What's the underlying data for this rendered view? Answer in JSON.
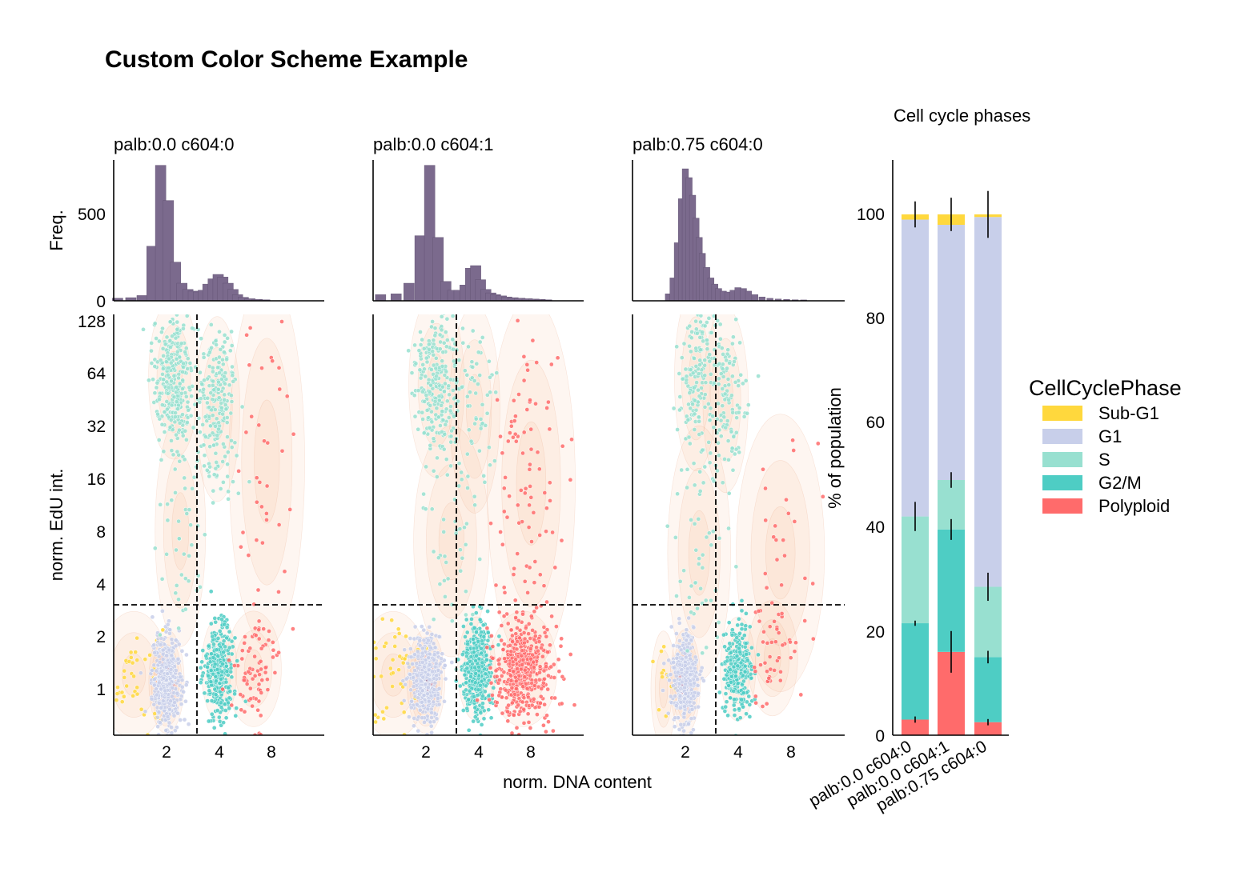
{
  "figure": {
    "title": "Custom Color Scheme Example",
    "shared_xlabel": "norm. DNA content",
    "scatter_ylabel": "norm. EdU int.",
    "hist_ylabel": "Freq."
  },
  "colors": {
    "Sub-G1": "#FFD83D",
    "G1": "#C8CFEA",
    "S": "#98E0D0",
    "G2/M": "#4ECDC4",
    "Polyploid": "#FF6B6B",
    "hist_fill": "#7B6A8D",
    "kde": "#F3B88C"
  },
  "chart_data": [
    {
      "type": "histogram",
      "panel": "palb:0.0 c604:0",
      "title": "palb:0.0 c604:0",
      "ylabel": "Freq.",
      "yticks": [
        "0",
        "500"
      ],
      "ylim": [
        0,
        800
      ],
      "bins": [
        {
          "x": 1.05,
          "count": 15
        },
        {
          "x": 1.25,
          "count": 18
        },
        {
          "x": 1.45,
          "count": 30
        },
        {
          "x": 1.65,
          "count": 310
        },
        {
          "x": 1.85,
          "count": 770
        },
        {
          "x": 2.05,
          "count": 570
        },
        {
          "x": 2.25,
          "count": 220
        },
        {
          "x": 2.45,
          "count": 100
        },
        {
          "x": 2.65,
          "count": 65
        },
        {
          "x": 2.85,
          "count": 55
        },
        {
          "x": 3.05,
          "count": 50
        },
        {
          "x": 3.25,
          "count": 60
        },
        {
          "x": 3.45,
          "count": 95
        },
        {
          "x": 3.7,
          "count": 125
        },
        {
          "x": 3.95,
          "count": 150
        },
        {
          "x": 4.2,
          "count": 135
        },
        {
          "x": 4.5,
          "count": 100
        },
        {
          "x": 4.8,
          "count": 65
        },
        {
          "x": 5.1,
          "count": 35
        },
        {
          "x": 5.5,
          "count": 20
        },
        {
          "x": 6.0,
          "count": 12
        },
        {
          "x": 6.6,
          "count": 8
        },
        {
          "x": 7.3,
          "count": 6
        }
      ]
    },
    {
      "type": "histogram",
      "panel": "palb:0.0 c604:1",
      "title": "palb:0.0 c604:1",
      "yticks": [],
      "ylim": [
        0,
        800
      ],
      "bins": [
        {
          "x": 1.1,
          "count": 35
        },
        {
          "x": 1.35,
          "count": 40
        },
        {
          "x": 1.6,
          "count": 100
        },
        {
          "x": 1.85,
          "count": 370
        },
        {
          "x": 2.1,
          "count": 770
        },
        {
          "x": 2.35,
          "count": 360
        },
        {
          "x": 2.6,
          "count": 110
        },
        {
          "x": 2.85,
          "count": 60
        },
        {
          "x": 3.1,
          "count": 60
        },
        {
          "x": 3.35,
          "count": 90
        },
        {
          "x": 3.6,
          "count": 185
        },
        {
          "x": 3.85,
          "count": 200
        },
        {
          "x": 4.1,
          "count": 120
        },
        {
          "x": 4.4,
          "count": 65
        },
        {
          "x": 4.7,
          "count": 45
        },
        {
          "x": 5.0,
          "count": 35
        },
        {
          "x": 5.4,
          "count": 28
        },
        {
          "x": 5.8,
          "count": 22
        },
        {
          "x": 6.3,
          "count": 18
        },
        {
          "x": 6.9,
          "count": 15
        },
        {
          "x": 7.6,
          "count": 12
        },
        {
          "x": 8.3,
          "count": 10
        },
        {
          "x": 9.0,
          "count": 8
        },
        {
          "x": 9.8,
          "count": 6
        }
      ]
    },
    {
      "type": "histogram",
      "panel": "palb:0.75 c604:0",
      "title": "palb:0.75 c604:0",
      "yticks": [],
      "ylim": [
        0,
        800
      ],
      "bins": [
        {
          "x": 1.6,
          "count": 40
        },
        {
          "x": 1.7,
          "count": 130
        },
        {
          "x": 1.8,
          "count": 330
        },
        {
          "x": 1.9,
          "count": 580
        },
        {
          "x": 2.0,
          "count": 750
        },
        {
          "x": 2.1,
          "count": 700
        },
        {
          "x": 2.2,
          "count": 600
        },
        {
          "x": 2.3,
          "count": 470
        },
        {
          "x": 2.4,
          "count": 360
        },
        {
          "x": 2.5,
          "count": 270
        },
        {
          "x": 2.65,
          "count": 190
        },
        {
          "x": 2.8,
          "count": 130
        },
        {
          "x": 2.95,
          "count": 95
        },
        {
          "x": 3.1,
          "count": 70
        },
        {
          "x": 3.3,
          "count": 55
        },
        {
          "x": 3.5,
          "count": 50
        },
        {
          "x": 3.75,
          "count": 60
        },
        {
          "x": 4.0,
          "count": 75
        },
        {
          "x": 4.3,
          "count": 70
        },
        {
          "x": 4.6,
          "count": 55
        },
        {
          "x": 5.0,
          "count": 35
        },
        {
          "x": 5.5,
          "count": 22
        },
        {
          "x": 6.1,
          "count": 14
        },
        {
          "x": 6.8,
          "count": 10
        },
        {
          "x": 7.6,
          "count": 8
        },
        {
          "x": 8.5,
          "count": 6
        },
        {
          "x": 9.5,
          "count": 5
        }
      ]
    },
    {
      "type": "scatter",
      "panel": "palb:0.0 c604:0",
      "xlabel": "",
      "ylabel": "norm. EdU int.",
      "xscale": "log2",
      "yscale": "log2",
      "xlim": [
        1,
        11
      ],
      "ylim": [
        0.5,
        128
      ],
      "xticks": [
        "2",
        "4",
        "8"
      ],
      "yticks": [
        "1",
        "2",
        "4",
        "8",
        "16",
        "32",
        "64",
        "128"
      ],
      "dna_threshold": 3.0,
      "edu_threshold": 3.0,
      "clusters": [
        {
          "phase": "Sub-G1",
          "n": 45,
          "x_center": 1.3,
          "x_spread": 0.28,
          "y_center": 1.2,
          "y_spread": 0.55
        },
        {
          "phase": "G1",
          "n": 420,
          "x_center": 2.0,
          "x_spread": 0.14,
          "y_center": 1.1,
          "y_spread": 0.45
        },
        {
          "phase": "S",
          "n": 300,
          "x_center": 2.2,
          "x_spread": 0.2,
          "y_center": 60,
          "y_spread": 0.7
        },
        {
          "phase": "S",
          "n": 220,
          "x_center": 3.9,
          "x_spread": 0.18,
          "y_center": 40,
          "y_spread": 0.8
        },
        {
          "phase": "S",
          "n": 45,
          "x_center": 2.4,
          "x_spread": 0.2,
          "y_center": 8,
          "y_spread": 1.0
        },
        {
          "phase": "G2/M",
          "n": 330,
          "x_center": 4.0,
          "x_spread": 0.14,
          "y_center": 1.3,
          "y_spread": 0.45
        },
        {
          "phase": "Polyploid",
          "n": 75,
          "x_center": 6.3,
          "x_spread": 0.22,
          "y_center": 1.3,
          "y_spread": 0.5
        },
        {
          "phase": "Polyploid",
          "n": 40,
          "x_center": 7.5,
          "x_spread": 0.3,
          "y_center": 20,
          "y_spread": 1.6
        }
      ]
    },
    {
      "type": "scatter",
      "panel": "palb:0.0 c604:1",
      "xlabel": "norm. DNA content",
      "xscale": "log2",
      "yscale": "log2",
      "xlim": [
        1,
        11
      ],
      "ylim": [
        0.5,
        128
      ],
      "xticks": [
        "2",
        "4",
        "8"
      ],
      "yticks": [],
      "dna_threshold": 3.0,
      "edu_threshold": 3.0,
      "clusters": [
        {
          "phase": "Sub-G1",
          "n": 45,
          "x_center": 1.3,
          "x_spread": 0.28,
          "y_center": 1.2,
          "y_spread": 0.55
        },
        {
          "phase": "G1",
          "n": 420,
          "x_center": 2.0,
          "x_spread": 0.15,
          "y_center": 1.1,
          "y_spread": 0.45
        },
        {
          "phase": "S",
          "n": 260,
          "x_center": 2.3,
          "x_spread": 0.22,
          "y_center": 55,
          "y_spread": 0.8
        },
        {
          "phase": "S",
          "n": 60,
          "x_center": 3.8,
          "x_spread": 0.2,
          "y_center": 40,
          "y_spread": 0.9
        },
        {
          "phase": "S",
          "n": 40,
          "x_center": 2.8,
          "x_spread": 0.3,
          "y_center": 7,
          "y_spread": 1.0
        },
        {
          "phase": "G2/M",
          "n": 420,
          "x_center": 3.9,
          "x_spread": 0.15,
          "y_center": 1.3,
          "y_spread": 0.45
        },
        {
          "phase": "Polyploid",
          "n": 470,
          "x_center": 7.2,
          "x_spread": 0.27,
          "y_center": 1.3,
          "y_spread": 0.5
        },
        {
          "phase": "Polyploid",
          "n": 95,
          "x_center": 8.0,
          "x_spread": 0.35,
          "y_center": 15,
          "y_spread": 1.6
        }
      ]
    },
    {
      "type": "scatter",
      "panel": "palb:0.75 c604:0",
      "xscale": "log2",
      "yscale": "log2",
      "xlim": [
        1,
        11
      ],
      "ylim": [
        0.5,
        128
      ],
      "xticks": [
        "2",
        "4",
        "8"
      ],
      "yticks": [],
      "dna_threshold": 3.0,
      "edu_threshold": 3.0,
      "clusters": [
        {
          "phase": "Sub-G1",
          "n": 12,
          "x_center": 1.5,
          "x_spread": 0.1,
          "y_center": 1.0,
          "y_spread": 0.5
        },
        {
          "phase": "G1",
          "n": 470,
          "x_center": 2.0,
          "x_spread": 0.12,
          "y_center": 1.1,
          "y_spread": 0.45
        },
        {
          "phase": "S",
          "n": 150,
          "x_center": 2.3,
          "x_spread": 0.17,
          "y_center": 60,
          "y_spread": 0.8
        },
        {
          "phase": "S",
          "n": 130,
          "x_center": 3.4,
          "x_spread": 0.18,
          "y_center": 45,
          "y_spread": 0.8
        },
        {
          "phase": "S",
          "n": 45,
          "x_center": 2.4,
          "x_spread": 0.25,
          "y_center": 6,
          "y_spread": 1.1
        },
        {
          "phase": "G2/M",
          "n": 260,
          "x_center": 4.0,
          "x_spread": 0.14,
          "y_center": 1.3,
          "y_spread": 0.45
        },
        {
          "phase": "Polyploid",
          "n": 40,
          "x_center": 6.3,
          "x_spread": 0.2,
          "y_center": 1.5,
          "y_spread": 0.5
        },
        {
          "phase": "Polyploid",
          "n": 30,
          "x_center": 7.0,
          "x_spread": 0.35,
          "y_center": 6,
          "y_spread": 1.2
        }
      ]
    },
    {
      "type": "bar",
      "stacked": true,
      "title": "Cell cycle phases",
      "xlabel": "",
      "ylabel": "% of population",
      "ylim": [
        0,
        110
      ],
      "yticks": [
        "0",
        "20",
        "40",
        "60",
        "80",
        "100"
      ],
      "categories": [
        "palb:0.0 c604:0",
        "palb:0.0 c604:1",
        "palb:0.75 c604:0"
      ],
      "series": [
        {
          "name": "Polyploid",
          "values": [
            3.0,
            16.0,
            2.5
          ],
          "errors": [
            0.6,
            4.0,
            0.6
          ]
        },
        {
          "name": "G2/M",
          "values": [
            18.5,
            23.5,
            12.5
          ],
          "errors": [
            0.5,
            2.0,
            1.2
          ]
        },
        {
          "name": "S",
          "values": [
            20.5,
            9.5,
            13.5
          ],
          "errors": [
            2.8,
            1.5,
            2.7
          ]
        },
        {
          "name": "G1",
          "values": [
            57.0,
            49.0,
            71.0
          ],
          "errors": [
            0,
            0,
            0
          ]
        },
        {
          "name": "Sub-G1",
          "values": [
            1.0,
            2.0,
            0.5
          ],
          "errors": [
            2.5,
            3.2,
            4.5
          ]
        }
      ],
      "legend": {
        "title": "CellCyclePhase",
        "position": "right",
        "entries": [
          "Sub-G1",
          "G1",
          "S",
          "G2/M",
          "Polyploid"
        ]
      }
    }
  ]
}
